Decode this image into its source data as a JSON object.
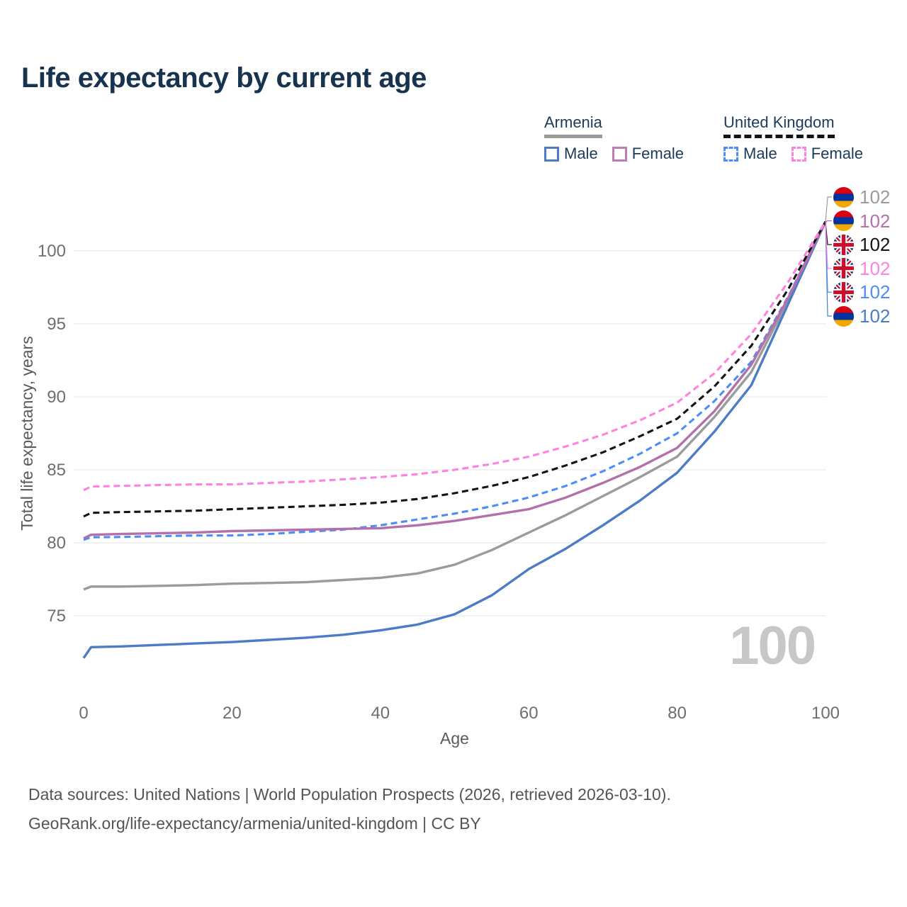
{
  "title": "Life expectancy by current age",
  "legend": {
    "groups": [
      {
        "label": "Armenia",
        "items": [
          {
            "label": "Male"
          },
          {
            "label": "Female"
          }
        ]
      },
      {
        "label": "United Kingdom",
        "items": [
          {
            "label": "Male"
          },
          {
            "label": "Female"
          }
        ]
      }
    ]
  },
  "watermark": {
    "value": "100"
  },
  "footer": {
    "line1": "Data sources: United Nations | World Population Prospects (2026, retrieved 2026-03-10).",
    "line2": "GeoRank.org/life-expectancy/armenia/united-kingdom | CC BY"
  },
  "chart_data": {
    "type": "line",
    "title": "Life expectancy by current age",
    "xlabel": "Age",
    "ylabel": "Total life expectancy, years",
    "x_ticks": [
      0,
      20,
      40,
      60,
      80,
      100
    ],
    "y_ticks": [
      75,
      80,
      85,
      90,
      95,
      100
    ],
    "xlim": [
      0,
      100
    ],
    "ylim": [
      71.5,
      103
    ],
    "grid": "horizontal",
    "legend_position": "top-right",
    "ages": [
      0,
      1,
      5,
      10,
      15,
      20,
      25,
      30,
      35,
      40,
      45,
      50,
      55,
      60,
      65,
      70,
      75,
      80,
      85,
      90,
      95,
      100
    ],
    "series": [
      {
        "name": "Armenia Total",
        "country": "Armenia",
        "sex": "total",
        "color": "#9b9b9b",
        "dashed": false,
        "end_label": "102",
        "end_value": 102,
        "label_row": 0,
        "flag": "am",
        "values": [
          76.8,
          77.0,
          77.0,
          77.05,
          77.1,
          77.2,
          77.25,
          77.3,
          77.45,
          77.6,
          77.9,
          78.5,
          79.5,
          80.7,
          81.9,
          83.2,
          84.5,
          85.9,
          88.6,
          91.7,
          96.6,
          102
        ]
      },
      {
        "name": "Armenia Male",
        "country": "Armenia",
        "sex": "male",
        "color": "#4d7cc7",
        "dashed": false,
        "end_label": "102",
        "end_value": 102,
        "label_row": 5,
        "flag": "am",
        "values": [
          72.1,
          72.85,
          72.9,
          73.0,
          73.1,
          73.2,
          73.35,
          73.5,
          73.7,
          74.0,
          74.4,
          75.1,
          76.4,
          78.2,
          79.6,
          81.2,
          82.9,
          84.8,
          87.6,
          90.8,
          96.4,
          102
        ]
      },
      {
        "name": "United Kingdom Male",
        "country": "United Kingdom",
        "sex": "male",
        "color": "#4c8ef5",
        "dashed": true,
        "end_label": "102",
        "end_value": 102,
        "label_row": 4,
        "flag": "uk",
        "values": [
          80.2,
          80.38,
          80.4,
          80.45,
          80.5,
          80.5,
          80.6,
          80.75,
          80.9,
          81.2,
          81.6,
          82.0,
          82.5,
          83.1,
          83.9,
          84.9,
          86.1,
          87.5,
          89.7,
          92.4,
          96.9,
          102
        ]
      },
      {
        "name": "Armenia Female",
        "country": "Armenia",
        "sex": "female",
        "color": "#b470ab",
        "dashed": false,
        "end_label": "102",
        "end_value": 102,
        "label_row": 1,
        "flag": "am",
        "values": [
          80.3,
          80.55,
          80.6,
          80.65,
          80.7,
          80.8,
          80.85,
          80.9,
          80.95,
          81.0,
          81.2,
          81.5,
          81.9,
          82.3,
          83.1,
          84.1,
          85.2,
          86.5,
          89.0,
          92.2,
          96.8,
          102
        ]
      },
      {
        "name": "United Kingdom Total",
        "country": "United Kingdom",
        "sex": "total",
        "color": "#141414",
        "dashed": true,
        "end_label": "102",
        "end_value": 102,
        "label_row": 2,
        "flag": "uk",
        "values": [
          81.8,
          82.05,
          82.1,
          82.15,
          82.2,
          82.3,
          82.4,
          82.5,
          82.6,
          82.75,
          83.0,
          83.4,
          83.9,
          84.5,
          85.3,
          86.2,
          87.3,
          88.5,
          90.7,
          93.5,
          97.4,
          102
        ]
      },
      {
        "name": "United Kingdom Female",
        "country": "United Kingdom",
        "sex": "female",
        "color": "#ff82df",
        "dashed": true,
        "end_label": "102",
        "end_value": 102,
        "label_row": 3,
        "flag": "uk",
        "values": [
          83.6,
          83.85,
          83.9,
          83.95,
          84.0,
          84.0,
          84.1,
          84.2,
          84.35,
          84.5,
          84.7,
          85.0,
          85.4,
          85.9,
          86.6,
          87.4,
          88.4,
          89.6,
          91.6,
          94.3,
          97.9,
          102
        ]
      }
    ],
    "colors": {
      "armenia_male": "#4d7cc7",
      "armenia_female": "#b470ab",
      "armenia_total": "#9b9b9b",
      "uk_male": "#4c8ef5",
      "uk_female": "#ff82df",
      "uk_total": "#141414",
      "grid": "#eaeaea",
      "axis_text": "#6e6e6e",
      "title_text": "#17334f",
      "watermark": "#c7c7c7"
    }
  }
}
